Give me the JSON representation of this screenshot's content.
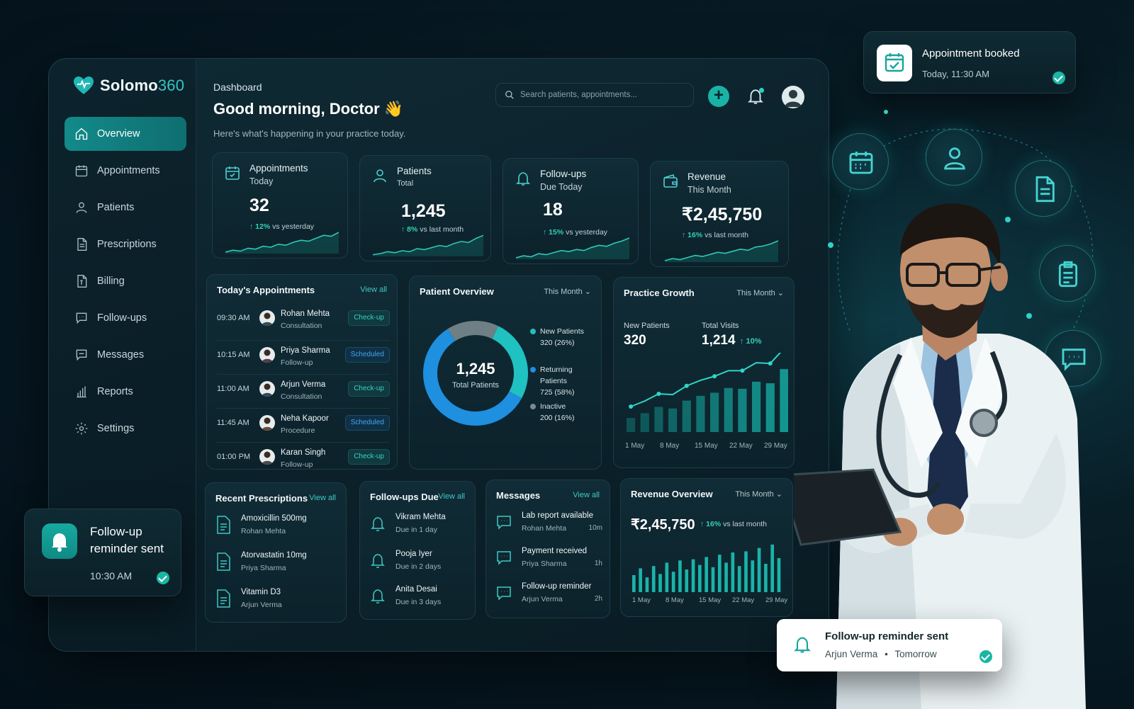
{
  "brand": {
    "name_a": "Solomo",
    "name_b": "360"
  },
  "sidebar": {
    "items": [
      {
        "label": "Overview",
        "icon": "home-icon"
      },
      {
        "label": "Appointments",
        "icon": "calendar-icon"
      },
      {
        "label": "Patients",
        "icon": "user-icon"
      },
      {
        "label": "Prescriptions",
        "icon": "document-icon"
      },
      {
        "label": "Billing",
        "icon": "invoice-icon"
      },
      {
        "label": "Follow-ups",
        "icon": "chat-icon"
      },
      {
        "label": "Messages",
        "icon": "message-icon"
      },
      {
        "label": "Reports",
        "icon": "bar-chart-icon"
      },
      {
        "label": "Settings",
        "icon": "gear-icon"
      }
    ]
  },
  "header": {
    "breadcrumb": "Dashboard",
    "greeting": "Good morning, Doctor",
    "greeting_emoji": "👋",
    "subtitle": "Here's what's happening in your practice today.",
    "search_placeholder": "Search patients, appointments..."
  },
  "stats": [
    {
      "title": "Appointments",
      "subtitle": "Today",
      "value": "32",
      "delta_arrow": "↑",
      "delta_value": "12%",
      "delta_text": "vs yesterday",
      "icon": "calendar-icon"
    },
    {
      "title": "Patients",
      "subtitle": "Total",
      "value": "1,245",
      "delta_arrow": "↑",
      "delta_value": "8%",
      "delta_text": "vs last month",
      "icon": "user-icon"
    },
    {
      "title": "Follow-ups",
      "subtitle": "Due Today",
      "value": "18",
      "delta_arrow": "↑",
      "delta_value": "15%",
      "delta_text": "vs yesterday",
      "icon": "bell-icon"
    },
    {
      "title": "Revenue",
      "subtitle": "This Month",
      "value": "₹2,45,750",
      "delta_arrow": "↑",
      "delta_value": "16%",
      "delta_text": "vs last month",
      "icon": "wallet-icon"
    }
  ],
  "appointments": {
    "title": "Today's Appointments",
    "view_all": "View all",
    "rows": [
      {
        "time": "09:30 AM",
        "name": "Rohan Mehta",
        "type": "Consultation",
        "status": "Check-up"
      },
      {
        "time": "10:15 AM",
        "name": "Priya Sharma",
        "type": "Follow-up",
        "status": "Scheduled"
      },
      {
        "time": "11:00 AM",
        "name": "Arjun Verma",
        "type": "Consultation",
        "status": "Check-up"
      },
      {
        "time": "11:45 AM",
        "name": "Neha Kapoor",
        "type": "Procedure",
        "status": "Scheduled"
      },
      {
        "time": "01:00 PM",
        "name": "Karan Singh",
        "type": "Follow-up",
        "status": "Check-up"
      }
    ]
  },
  "patient_overview": {
    "title": "Patient Overview",
    "period": "This Month ⌄",
    "center_value": "1,245",
    "center_label": "Total Patients",
    "legend": [
      {
        "label": "New Patients",
        "value": "320 (26%)",
        "color": "#1fc2c0"
      },
      {
        "label": "Returning Patients",
        "value": "725 (58%)",
        "color": "#1f8fe0"
      },
      {
        "label": "Inactive",
        "value": "200 (16%)",
        "color": "#7b8a90"
      }
    ]
  },
  "practice_growth": {
    "title": "Practice Growth",
    "period": "This Month ⌄",
    "new_label": "New Patients",
    "new_value": "320",
    "visits_label": "Total Visits",
    "visits_value": "1,214",
    "visits_delta": "↑ 10%"
  },
  "prescriptions": {
    "title": "Recent Prescriptions",
    "view_all": "View all",
    "items": [
      {
        "drug": "Amoxicillin 500mg",
        "patient": "Rohan Mehta"
      },
      {
        "drug": "Atorvastatin 10mg",
        "patient": "Priya Sharma"
      },
      {
        "drug": "Vitamin D3",
        "patient": "Arjun Verma"
      }
    ]
  },
  "followups": {
    "title": "Follow-ups Due",
    "view_all": "View all",
    "items": [
      {
        "name": "Vikram Mehta",
        "due": "Due in 1 day"
      },
      {
        "name": "Pooja Iyer",
        "due": "Due in 2 days"
      },
      {
        "name": "Anita Desai",
        "due": "Due in 3 days"
      }
    ]
  },
  "messages": {
    "title": "Messages",
    "view_all": "View all",
    "items": [
      {
        "title": "Lab report available",
        "from": "Rohan Mehta",
        "ago": "10m"
      },
      {
        "title": "Payment received",
        "from": "Priya Sharma",
        "ago": "1h"
      },
      {
        "title": "Follow-up reminder",
        "from": "Arjun Verma",
        "ago": "2h"
      }
    ]
  },
  "revenue_overview": {
    "title": "Revenue Overview",
    "period": "This Month ⌄",
    "value": "₹2,45,750",
    "delta": "↑ 16%",
    "delta_text": "vs last month"
  },
  "toasts": {
    "booked_title": "Appointment booked",
    "booked_time": "Today, 11:30 AM",
    "reminder_title": "Follow-up reminder sent",
    "reminder_time": "10:30 AM",
    "reminder2_title": "Follow-up reminder sent",
    "reminder2_name": "Arjun Verma",
    "reminder2_sep": "•",
    "reminder2_when": "Tomorrow"
  },
  "chart_data": [
    {
      "type": "pie",
      "title": "Patient Overview",
      "categories": [
        "New Patients",
        "Returning Patients",
        "Inactive"
      ],
      "values": [
        320,
        725,
        200
      ],
      "colors": [
        "#1fc2c0",
        "#1f8fe0",
        "#6f7f86"
      ]
    },
    {
      "type": "bar",
      "title": "Practice Growth",
      "x_ticks": [
        "1 May",
        "8 May",
        "15 May",
        "22 May",
        "29 May"
      ],
      "values": [
        18,
        24,
        32,
        30,
        40,
        46,
        50,
        56,
        55,
        64,
        62,
        80
      ]
    },
    {
      "type": "bar",
      "title": "Revenue Overview",
      "x_ticks": [
        "1 May",
        "8 May",
        "15 May",
        "22 May",
        "29 May"
      ],
      "values": [
        30,
        42,
        26,
        46,
        32,
        52,
        36,
        56,
        40,
        58,
        48,
        62,
        44,
        66,
        52,
        70,
        46,
        72,
        56,
        78,
        50,
        84,
        60
      ]
    },
    {
      "type": "line",
      "title": "",
      "x_ticks": [],
      "series": [
        {
          "values": [
            10,
            12,
            11,
            14,
            13,
            16,
            15,
            18,
            17,
            20,
            22,
            21,
            24,
            27,
            26,
            30
          ]
        },
        {
          "values": [
            10,
            11,
            13,
            12,
            14,
            13,
            16,
            15,
            17,
            19,
            18,
            21,
            23,
            22,
            26,
            29
          ]
        },
        {
          "values": [
            9,
            11,
            10,
            13,
            12,
            14,
            16,
            15,
            17,
            16,
            19,
            21,
            20,
            23,
            25,
            28
          ]
        },
        {
          "values": [
            10,
            12,
            11,
            13,
            15,
            14,
            16,
            18,
            17,
            19,
            21,
            20,
            23,
            24,
            26,
            29
          ]
        }
      ]
    }
  ]
}
